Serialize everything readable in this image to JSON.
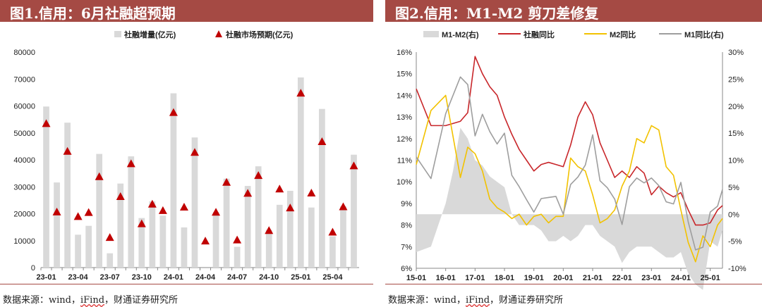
{
  "left": {
    "title": "图1.信用：6月社融超预期",
    "source": {
      "prefix": "数据来源：wind，",
      "wavy": "iFind",
      "suffix": "，财通证券研究所"
    },
    "chart_data": {
      "type": "bar",
      "ylim": [
        0,
        80000
      ],
      "yticks": [
        "0",
        "10000",
        "20000",
        "30000",
        "40000",
        "50000",
        "60000",
        "70000",
        "80000"
      ],
      "tick_labels": [
        "23-01",
        "23-04",
        "23-07",
        "23-10",
        "24-01",
        "24-04",
        "24-07",
        "24-10",
        "25-01",
        "25-04"
      ],
      "legend": [
        "社融增量(亿元)",
        "社融市场预期(亿元)"
      ],
      "categories": [
        "23-01",
        "23-02",
        "23-03",
        "23-04",
        "23-05",
        "23-06",
        "23-07",
        "23-08",
        "23-09",
        "23-10",
        "23-11",
        "23-12",
        "24-01",
        "24-02",
        "24-03",
        "24-04",
        "24-05",
        "24-06",
        "24-07",
        "24-08",
        "24-09",
        "24-10",
        "24-11",
        "24-12",
        "25-01",
        "25-02",
        "25-03",
        "25-04",
        "25-05",
        "25-06"
      ],
      "series": [
        {
          "name": "社融增量(亿元)",
          "values": [
            59800,
            31600,
            53800,
            12200,
            15500,
            42200,
            5300,
            31200,
            41300,
            18400,
            24600,
            19300,
            64700,
            14900,
            48300,
            0,
            20600,
            33000,
            7700,
            30300,
            37600,
            14000,
            23300,
            28500,
            70600,
            22300,
            58900,
            11600,
            22800,
            41900
          ]
        },
        {
          "name": "社融市场预期(亿元)",
          "values": [
            53500,
            20700,
            43200,
            19000,
            20500,
            33800,
            11200,
            26400,
            38600,
            16300,
            23600,
            21200,
            57600,
            22500,
            42800,
            9900,
            20600,
            31700,
            10300,
            27600,
            34200,
            13800,
            29200,
            22200,
            64800,
            27700,
            46800,
            13200,
            22600,
            37800
          ]
        }
      ]
    }
  },
  "right": {
    "title": "图2.信用：M1-M2 剪刀差修复",
    "source": {
      "prefix": "数据来源：wind，",
      "wavy": "iFind",
      "suffix": "，财通证券研究所"
    },
    "chart_data": {
      "type": "line",
      "x_range": [
        "15-01",
        "25-06"
      ],
      "ylim_left": [
        6,
        16
      ],
      "ylim_right": [
        -10,
        30
      ],
      "yticks_left": [
        "6%",
        "7%",
        "8%",
        "9%",
        "10%",
        "11%",
        "12%",
        "13%",
        "14%",
        "15%",
        "16%"
      ],
      "yticks_right": [
        "-10%",
        "-5%",
        "0%",
        "5%",
        "10%",
        "15%",
        "20%",
        "25%",
        "30%"
      ],
      "tick_labels": [
        "15-01",
        "16-01",
        "17-01",
        "18-01",
        "19-01",
        "20-01",
        "21-01",
        "22-01",
        "23-01",
        "24-01",
        "25-01"
      ],
      "legend": [
        "M1-M2(右)",
        "社融同比",
        "M2同比",
        "M1同比(右)"
      ],
      "colors": {
        "M1-M2(右)": "#d9d9d9",
        "社融同比": "#c8262a",
        "M2同比": "#f2c200",
        "M1同比(右)": "#9e9e9e"
      },
      "series": [
        {
          "name": "M1-M2(右)",
          "axis": "right",
          "x": [
            "15-01",
            "15-07",
            "16-01",
            "16-04",
            "16-07",
            "16-10",
            "17-01",
            "17-04",
            "17-07",
            "17-10",
            "18-01",
            "18-04",
            "18-07",
            "18-10",
            "19-01",
            "19-04",
            "19-07",
            "19-10",
            "20-01",
            "20-04",
            "20-07",
            "20-10",
            "21-01",
            "21-04",
            "21-07",
            "21-10",
            "22-01",
            "22-04",
            "22-07",
            "22-10",
            "23-01",
            "23-04",
            "23-07",
            "23-10",
            "24-01",
            "24-04",
            "24-07",
            "24-10",
            "25-01",
            "25-04",
            "25-06"
          ],
          "values": [
            -7,
            -6,
            2,
            8,
            16,
            14,
            10,
            9,
            7,
            6,
            5,
            0,
            -2,
            -2,
            -2,
            -3,
            -5,
            -5,
            -4,
            -5,
            -4,
            -2,
            -2,
            -4,
            -5,
            -6,
            -9,
            -7,
            -6,
            -6,
            -6,
            -7,
            -8,
            -8,
            -7,
            -11,
            -13,
            -14,
            -5,
            -6,
            -3
          ]
        },
        {
          "name": "社融同比",
          "axis": "left",
          "x": [
            "15-01",
            "15-07",
            "16-01",
            "16-07",
            "16-10",
            "17-01",
            "17-04",
            "17-07",
            "17-10",
            "18-01",
            "18-04",
            "18-07",
            "18-10",
            "19-01",
            "19-04",
            "19-07",
            "19-10",
            "20-01",
            "20-04",
            "20-07",
            "20-10",
            "21-01",
            "21-04",
            "21-07",
            "21-10",
            "22-01",
            "22-04",
            "22-07",
            "22-10",
            "23-01",
            "23-04",
            "23-07",
            "23-10",
            "24-01",
            "24-04",
            "24-07",
            "24-10",
            "25-01",
            "25-04",
            "25-06"
          ],
          "values": [
            14.3,
            12.6,
            12.6,
            12.8,
            13.2,
            15.8,
            15.0,
            14.4,
            14.0,
            13.0,
            12.2,
            11.5,
            11.0,
            10.5,
            10.8,
            10.9,
            10.8,
            10.7,
            11.7,
            13.0,
            13.7,
            13.1,
            11.8,
            11.0,
            10.2,
            10.5,
            10.2,
            10.7,
            10.4,
            9.4,
            9.8,
            9.5,
            9.3,
            9.5,
            8.7,
            8.0,
            8.0,
            8.1,
            8.7,
            8.9
          ]
        },
        {
          "name": "M2同比",
          "axis": "left",
          "x": [
            "15-01",
            "15-07",
            "16-01",
            "16-07",
            "16-10",
            "17-01",
            "17-04",
            "17-07",
            "17-10",
            "18-01",
            "18-04",
            "18-07",
            "18-10",
            "19-01",
            "19-04",
            "19-07",
            "19-10",
            "20-01",
            "20-04",
            "20-07",
            "20-10",
            "21-01",
            "21-04",
            "21-07",
            "21-10",
            "22-01",
            "22-04",
            "22-07",
            "22-10",
            "23-01",
            "23-04",
            "23-07",
            "23-10",
            "24-01",
            "24-04",
            "24-07",
            "24-10",
            "25-01",
            "25-04",
            "25-06"
          ],
          "values": [
            10.8,
            13.3,
            14.0,
            10.2,
            11.6,
            11.3,
            10.5,
            9.2,
            8.8,
            8.6,
            8.3,
            8.5,
            8.0,
            8.4,
            8.5,
            8.1,
            8.4,
            8.4,
            11.1,
            10.7,
            10.5,
            9.4,
            8.1,
            8.3,
            8.7,
            9.8,
            10.5,
            12.0,
            11.8,
            12.6,
            12.4,
            10.7,
            10.3,
            8.7,
            7.2,
            6.3,
            7.5,
            7.0,
            8.0,
            8.3
          ]
        },
        {
          "name": "M1同比(右)",
          "axis": "right",
          "x": [
            "15-01",
            "15-07",
            "16-01",
            "16-07",
            "16-10",
            "17-01",
            "17-04",
            "17-07",
            "17-10",
            "18-01",
            "18-04",
            "18-07",
            "18-10",
            "19-01",
            "19-04",
            "19-07",
            "19-10",
            "20-01",
            "20-04",
            "20-07",
            "20-10",
            "21-01",
            "21-04",
            "21-07",
            "21-10",
            "22-01",
            "22-04",
            "22-07",
            "22-10",
            "23-01",
            "23-04",
            "23-07",
            "23-10",
            "24-01",
            "24-04",
            "24-07",
            "24-10",
            "25-01",
            "25-04",
            "25-06"
          ],
          "values": [
            10.6,
            6.6,
            18.6,
            25.4,
            24.0,
            14.5,
            18.5,
            15.3,
            13.0,
            15.0,
            7.2,
            5.1,
            2.7,
            0.4,
            2.9,
            3.1,
            3.3,
            0.0,
            5.5,
            6.9,
            9.1,
            14.7,
            6.2,
            4.9,
            2.8,
            -1.9,
            5.1,
            6.7,
            5.8,
            6.7,
            5.3,
            2.3,
            1.9,
            5.9,
            -1.4,
            -6.6,
            -6.1,
            0.4,
            1.5,
            4.6
          ]
        }
      ]
    }
  }
}
